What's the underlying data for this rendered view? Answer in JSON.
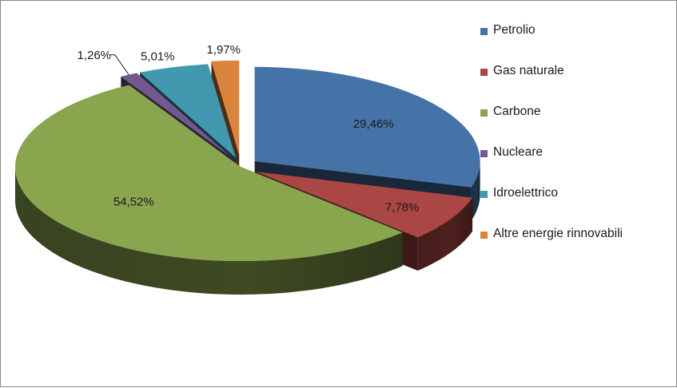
{
  "chart_data": {
    "type": "pie",
    "style": "3d-exploded",
    "categories": [
      "Petrolio",
      "Gas naturale",
      "Carbone",
      "Nucleare",
      "Idroelettrico",
      "Altre energie rinnovabili"
    ],
    "values": [
      29.46,
      7.78,
      54.52,
      1.26,
      5.01,
      1.97
    ],
    "labels": [
      "29,46%",
      "7,78%",
      "54,52%",
      "1,26%",
      "5,01%",
      "1,97%"
    ],
    "colors": [
      "#4572A7",
      "#AA4643",
      "#89A54E",
      "#71588F",
      "#4198AF",
      "#DB843D"
    ],
    "legend_position": "right"
  }
}
